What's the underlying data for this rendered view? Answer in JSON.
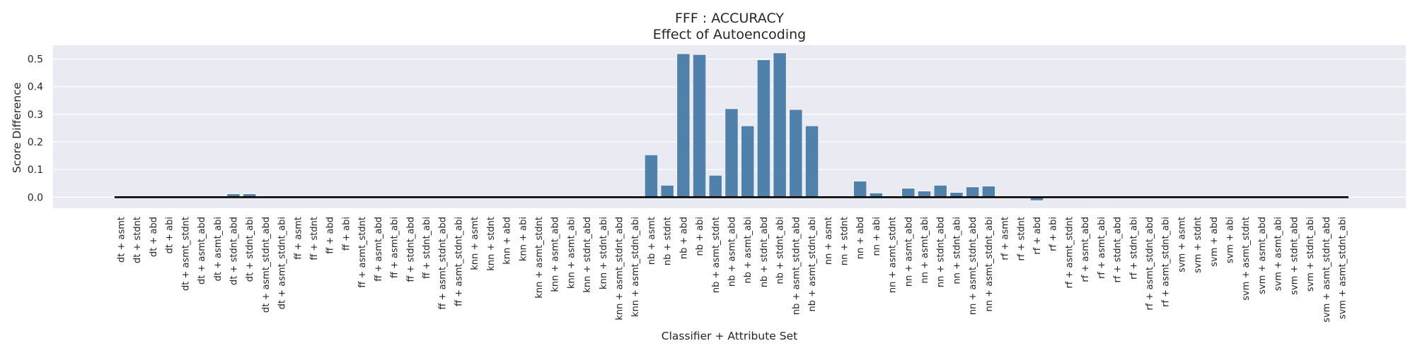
{
  "chart_data": {
    "type": "bar",
    "title": "FFF : ACCURACY",
    "subtitle": "Effect of Autoencoding",
    "xlabel": "Classifier + Attribute Set",
    "ylabel": "Score Difference",
    "ylim": [
      -0.04,
      0.55
    ],
    "yticks": [
      0.0,
      0.1,
      0.2,
      0.3,
      0.4,
      0.5
    ],
    "ytick_labels": [
      "0.0",
      "0.1",
      "0.2",
      "0.3",
      "0.4",
      "0.5"
    ],
    "grid": true,
    "zero_line": true,
    "bar_color": "#4f81ab",
    "background_color": "#eaeaf2",
    "categories": [
      "dt + asmt",
      "dt + stdnt",
      "dt + abd",
      "dt + abi",
      "dt + asmt_stdnt",
      "dt + asmt_abd",
      "dt + asmt_abi",
      "dt + stdnt_abd",
      "dt + stdnt_abi",
      "dt + asmt_stdnt_abd",
      "dt + asmt_stdnt_abi",
      "ff + asmt",
      "ff + stdnt",
      "ff + abd",
      "ff + abi",
      "ff + asmt_stdnt",
      "ff + asmt_abd",
      "ff + asmt_abi",
      "ff + stdnt_abd",
      "ff + stdnt_abi",
      "ff + asmt_stdnt_abd",
      "ff + asmt_stdnt_abi",
      "knn + asmt",
      "knn + stdnt",
      "knn + abd",
      "knn + abi",
      "knn + asmt_stdnt",
      "knn + asmt_abd",
      "knn + asmt_abi",
      "knn + stdnt_abd",
      "knn + stdnt_abi",
      "knn + asmt_stdnt_abd",
      "knn + asmt_stdnt_abi",
      "nb + asmt",
      "nb + stdnt",
      "nb + abd",
      "nb + abi",
      "nb + asmt_stdnt",
      "nb + asmt_abd",
      "nb + asmt_abi",
      "nb + stdnt_abd",
      "nb + stdnt_abi",
      "nb + asmt_stdnt_abd",
      "nb + asmt_stdnt_abi",
      "nn + asmt",
      "nn + stdnt",
      "nn + abd",
      "nn + abi",
      "nn + asmt_stdnt",
      "nn + asmt_abd",
      "nn + asmt_abi",
      "nn + stdnt_abd",
      "nn + stdnt_abi",
      "nn + asmt_stdnt_abd",
      "nn + asmt_stdnt_abi",
      "rf + asmt",
      "rf + stdnt",
      "rf + abd",
      "rf + abi",
      "rf + asmt_stdnt",
      "rf + asmt_abd",
      "rf + asmt_abi",
      "rf + stdnt_abd",
      "rf + stdnt_abi",
      "rf + asmt_stdnt_abd",
      "rf + asmt_stdnt_abi",
      "svm + asmt",
      "svm + stdnt",
      "svm + abd",
      "svm + abi",
      "svm + asmt_stdnt",
      "svm + asmt_abd",
      "svm + asmt_abi",
      "svm + stdnt_abd",
      "svm + stdnt_abi",
      "svm + asmt_stdnt_abd",
      "svm + asmt_stdnt_abi"
    ],
    "values": [
      0,
      0,
      0,
      0,
      0,
      0,
      0,
      0.012,
      0.012,
      0,
      0,
      0,
      0,
      0,
      0,
      0,
      0,
      0,
      0,
      0,
      0,
      0,
      0,
      0,
      0,
      0,
      0,
      0,
      0,
      0,
      0,
      0,
      0,
      0.153,
      0.043,
      0.519,
      0.516,
      0.079,
      0.32,
      0.258,
      0.497,
      0.522,
      0.317,
      0.258,
      0,
      0,
      0.058,
      0.015,
      0,
      0.032,
      0.022,
      0.043,
      0.017,
      0.037,
      0.04,
      0,
      0,
      -0.012,
      0,
      0,
      0,
      -0.004,
      0,
      0,
      0,
      0,
      0,
      0,
      0,
      0,
      0,
      0,
      0,
      0,
      0,
      0,
      0
    ]
  }
}
